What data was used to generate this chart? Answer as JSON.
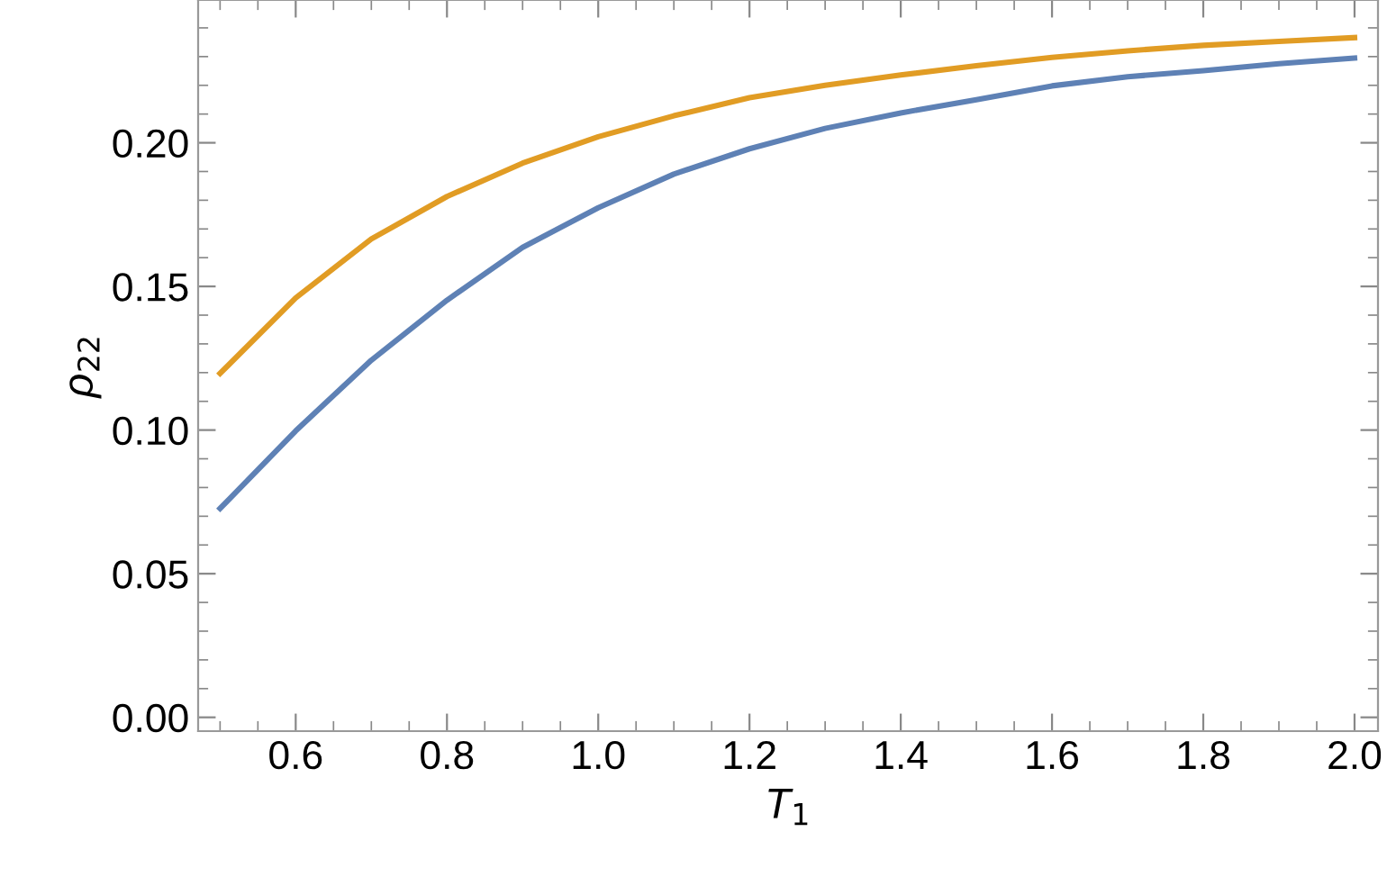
{
  "chart_data": {
    "type": "line",
    "xlabel": "T$_{1}$",
    "ylabel": "ρ$_{22}$",
    "x": [
      0.5,
      0.6,
      0.7,
      0.8,
      0.9,
      1.0,
      1.1,
      1.2,
      1.3,
      1.4,
      1.5,
      1.6,
      1.7,
      1.8,
      1.9,
      2.0
    ],
    "series": [
      {
        "color": "#5e81b5",
        "values": [
          0.0727,
          0.0997,
          0.1243,
          0.1452,
          0.1636,
          0.1774,
          0.1891,
          0.1979,
          0.205,
          0.2104,
          0.215,
          0.2198,
          0.223,
          0.2251,
          0.2275,
          0.2295
        ]
      },
      {
        "color": "#e19c24",
        "values": [
          0.1197,
          0.146,
          0.1665,
          0.1813,
          0.1929,
          0.2021,
          0.2094,
          0.2157,
          0.22,
          0.2236,
          0.2268,
          0.2297,
          0.232,
          0.2339,
          0.2353,
          0.2366
        ]
      }
    ],
    "xlim": [
      0.471,
      2.031
    ],
    "ylim": [
      -0.0048,
      0.2497
    ],
    "xticks": [
      {
        "value": 0.5,
        "label": null
      },
      {
        "value": 0.55,
        "label": null
      },
      0.6,
      {
        "value": 0.65,
        "label": null
      },
      {
        "value": 0.7,
        "label": null
      },
      {
        "value": 0.75,
        "label": null
      },
      0.8,
      {
        "value": 0.85,
        "label": null
      },
      {
        "value": 0.9,
        "label": null
      },
      {
        "value": 0.95,
        "label": null
      },
      {
        "value": 1.0,
        "label": "1.0"
      },
      {
        "value": 1.05,
        "label": null
      },
      {
        "value": 1.1,
        "label": null
      },
      {
        "value": 1.15,
        "label": null
      },
      1.2,
      {
        "value": 1.25,
        "label": null
      },
      {
        "value": 1.3,
        "label": null
      },
      {
        "value": 1.35,
        "label": null
      },
      1.4,
      {
        "value": 1.45,
        "label": null
      },
      {
        "value": 1.5,
        "label": null
      },
      {
        "value": 1.55,
        "label": null
      },
      1.6,
      {
        "value": 1.65,
        "label": null
      },
      {
        "value": 1.7,
        "label": null
      },
      {
        "value": 1.75,
        "label": null
      },
      1.8,
      {
        "value": 1.85,
        "label": null
      },
      {
        "value": 1.9,
        "label": null
      },
      {
        "value": 1.95,
        "label": null
      },
      {
        "value": 2.0,
        "label": "2.0"
      }
    ],
    "yticks": [
      {
        "value": 0.0,
        "label": "0.00"
      },
      {
        "value": 0.01,
        "label": null
      },
      {
        "value": 0.02,
        "label": null
      },
      {
        "value": 0.03,
        "label": null
      },
      {
        "value": 0.04,
        "label": null
      },
      {
        "value": 0.05,
        "label": "0.05"
      },
      {
        "value": 0.06,
        "label": null
      },
      {
        "value": 0.07,
        "label": null
      },
      {
        "value": 0.08,
        "label": null
      },
      {
        "value": 0.09,
        "label": null
      },
      {
        "value": 0.1,
        "label": "0.10"
      },
      {
        "value": 0.11,
        "label": null
      },
      {
        "value": 0.12,
        "label": null
      },
      {
        "value": 0.13,
        "label": null
      },
      {
        "value": 0.14,
        "label": null
      },
      0.15,
      {
        "value": 0.16,
        "label": null
      },
      {
        "value": 0.17,
        "label": null
      },
      {
        "value": 0.18,
        "label": null
      },
      {
        "value": 0.19,
        "label": null
      },
      {
        "value": 0.2,
        "label": "0.20"
      },
      {
        "value": 0.21,
        "label": null
      },
      {
        "value": 0.22,
        "label": null
      },
      {
        "value": 0.23,
        "label": null
      },
      {
        "value": 0.24,
        "label": null
      }
    ],
    "grid": false,
    "marker": "none",
    "line_style": "solid",
    "legend": false
  }
}
